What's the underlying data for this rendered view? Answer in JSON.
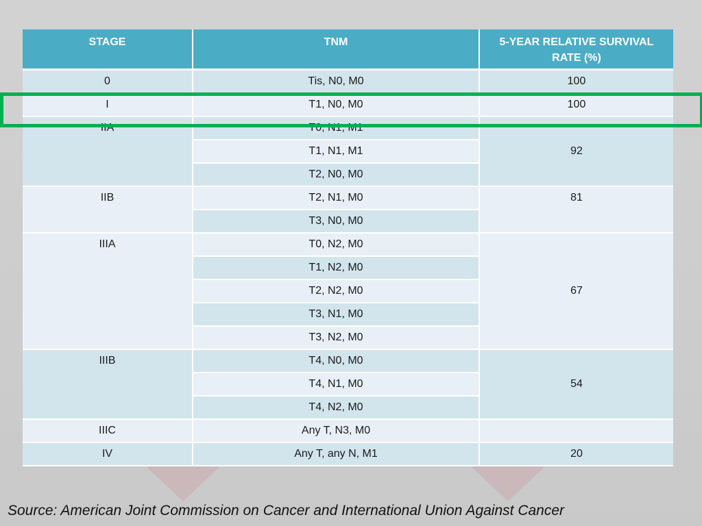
{
  "table": {
    "headers": {
      "stage": "STAGE",
      "tnm": "TNM",
      "rate": "5-YEAR RELATIVE SURVIVAL RATE (%)"
    },
    "rows": [
      {
        "stage": "0",
        "tnm": "Tis, N0, M0",
        "rate": "100"
      },
      {
        "stage": "I",
        "tnm": "T1, N0, M0",
        "rate": "100"
      },
      {
        "stage": "IIA",
        "tnm": "T0, N1, M1",
        "rate": "92"
      },
      {
        "stage": "",
        "tnm": "T1, N1, M1",
        "rate": ""
      },
      {
        "stage": "",
        "tnm": "T2, N0, M0",
        "rate": ""
      },
      {
        "stage": "IIB",
        "tnm": "T2, N1, M0",
        "rate": "81"
      },
      {
        "stage": "",
        "tnm": "T3, N0, M0",
        "rate": ""
      },
      {
        "stage": "IIIA",
        "tnm": "T0, N2, M0",
        "rate": "67"
      },
      {
        "stage": "",
        "tnm": "T1, N2, M0",
        "rate": ""
      },
      {
        "stage": "",
        "tnm": "T2, N2, M0",
        "rate": ""
      },
      {
        "stage": "",
        "tnm": "T3, N1, M0",
        "rate": ""
      },
      {
        "stage": "",
        "tnm": "T3, N2, M0",
        "rate": ""
      },
      {
        "stage": "IIIB",
        "tnm": "T4, N0, M0",
        "rate": "54"
      },
      {
        "stage": "",
        "tnm": "T4, N1, M0",
        "rate": ""
      },
      {
        "stage": "",
        "tnm": "T4, N2, M0",
        "rate": ""
      },
      {
        "stage": "IIIC",
        "tnm": "Any T, N3, M0",
        "rate": ""
      },
      {
        "stage": "IV",
        "tnm": "Any T, any N, M1",
        "rate": "20"
      }
    ]
  },
  "highlighted_row": "I",
  "colors": {
    "header": "#4bacc6",
    "band_dark": "#d2e4ec",
    "band_light": "#e9eff6",
    "highlight": "#00b050"
  },
  "source": "Source: American Joint Commission on Cancer and International Union Against Cancer"
}
